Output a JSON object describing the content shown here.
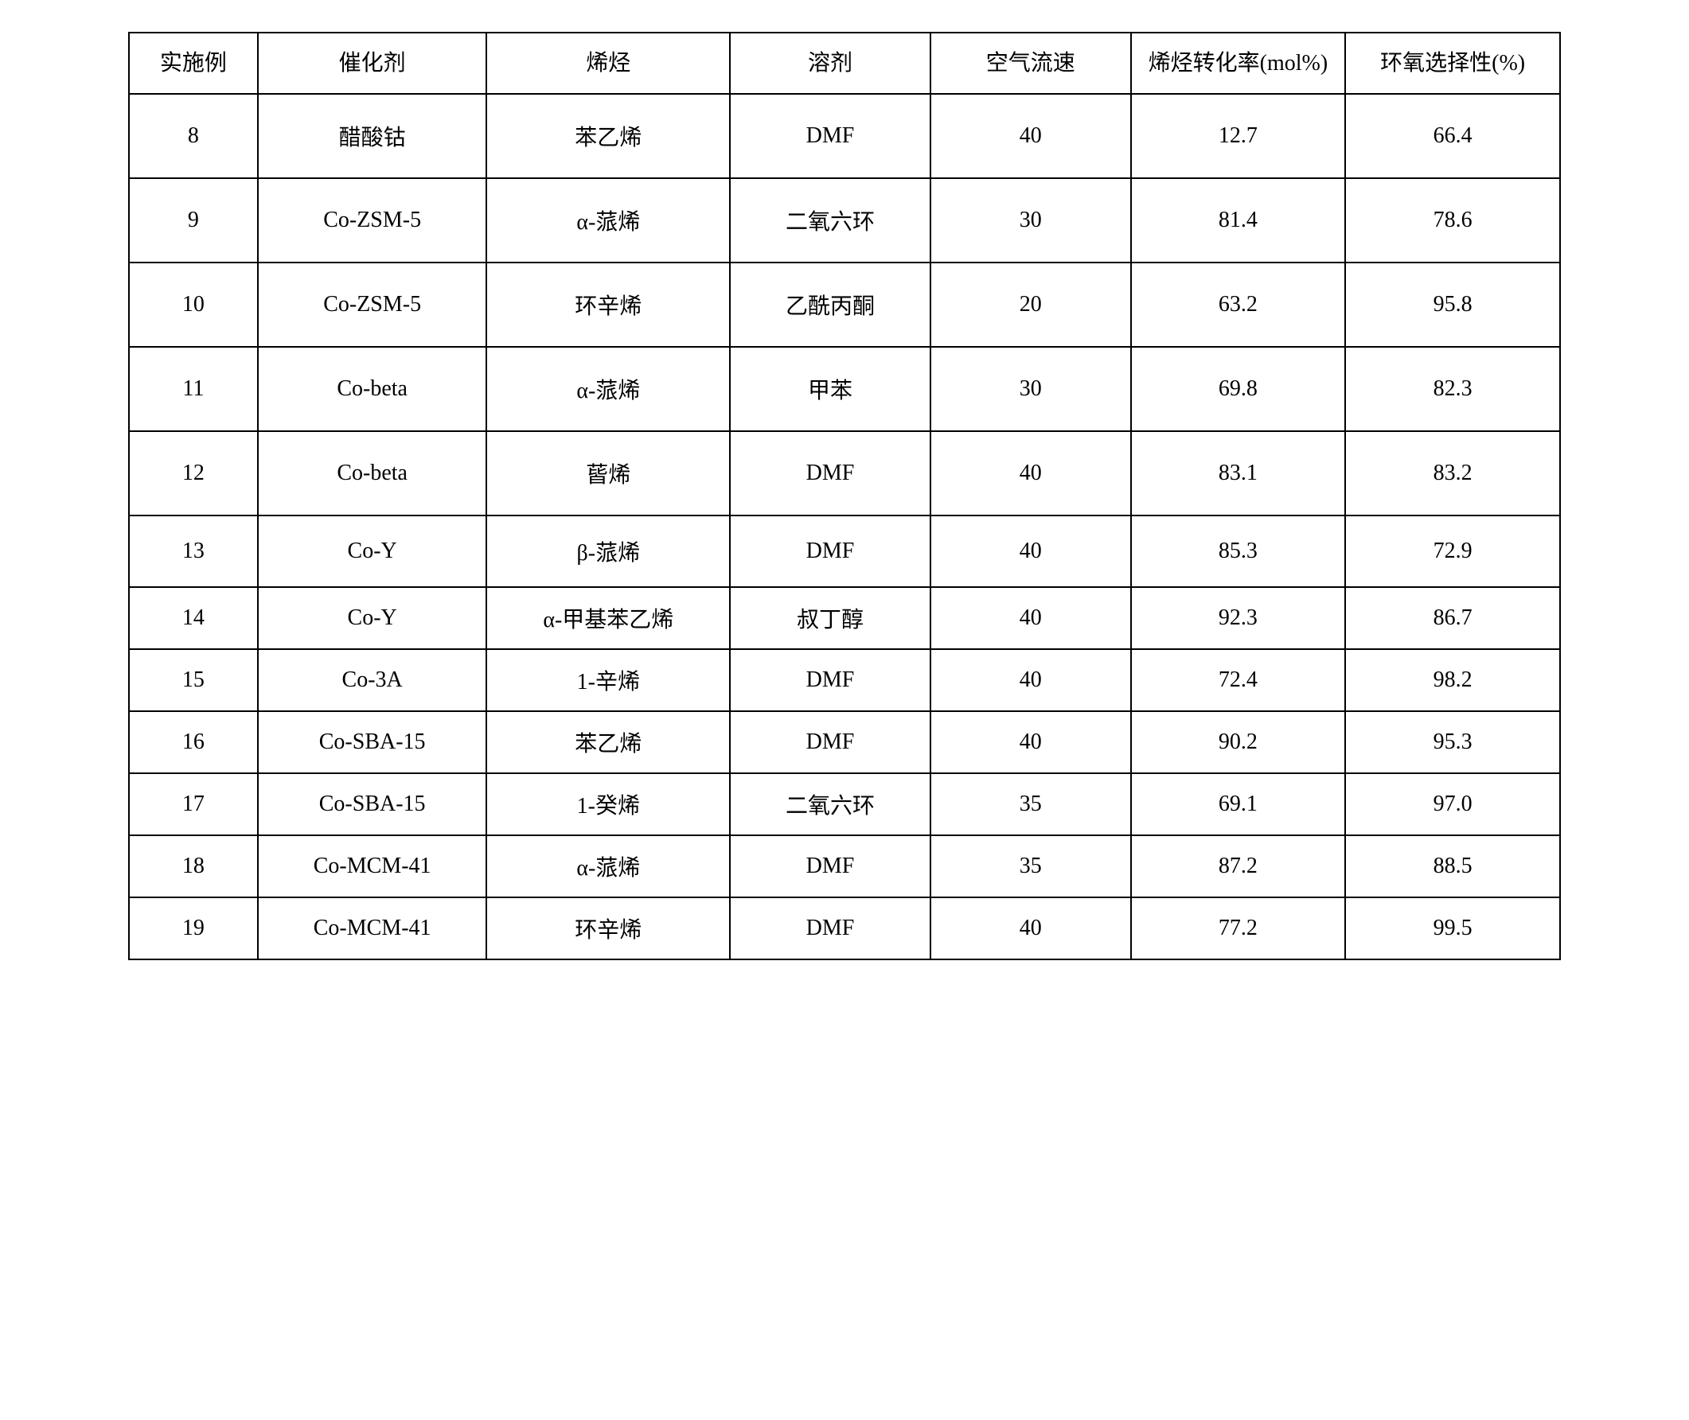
{
  "table": {
    "columns": [
      {
        "label": "实施例",
        "width": "9%"
      },
      {
        "label": "催化剂",
        "width": "16%"
      },
      {
        "label": "烯烃",
        "width": "17%"
      },
      {
        "label": "溶剂",
        "width": "14%"
      },
      {
        "label": "空气流速",
        "width": "14%"
      },
      {
        "label": "烯烃转化率(mol%)",
        "width": "15%"
      },
      {
        "label": "环氧选择性(%)",
        "width": "15%"
      }
    ],
    "rows": [
      {
        "height": "tall",
        "cells": [
          "8",
          "醋酸钴",
          "苯乙烯",
          "DMF",
          "40",
          "12.7",
          "66.4"
        ]
      },
      {
        "height": "tall",
        "cells": [
          "9",
          "Co-ZSM-5",
          "α-蒎烯",
          "二氧六环",
          "30",
          "81.4",
          "78.6"
        ]
      },
      {
        "height": "tall",
        "cells": [
          "10",
          "Co-ZSM-5",
          "环辛烯",
          "乙酰丙酮",
          "20",
          "63.2",
          "95.8"
        ]
      },
      {
        "height": "tall",
        "cells": [
          "11",
          "Co-beta",
          "α-蒎烯",
          "甲苯",
          "30",
          "69.8",
          "82.3"
        ]
      },
      {
        "height": "tall",
        "cells": [
          "12",
          "Co-beta",
          "蒈烯",
          "DMF",
          "40",
          "83.1",
          "83.2"
        ]
      },
      {
        "height": "medium",
        "cells": [
          "13",
          "Co-Y",
          "β-蒎烯",
          "DMF",
          "40",
          "85.3",
          "72.9"
        ]
      },
      {
        "height": "normal",
        "cells": [
          "14",
          "Co-Y",
          "α-甲基苯乙烯",
          "叔丁醇",
          "40",
          "92.3",
          "86.7"
        ]
      },
      {
        "height": "normal",
        "cells": [
          "15",
          "Co-3A",
          "1-辛烯",
          "DMF",
          "40",
          "72.4",
          "98.2"
        ]
      },
      {
        "height": "normal",
        "cells": [
          "16",
          "Co-SBA-15",
          "苯乙烯",
          "DMF",
          "40",
          "90.2",
          "95.3"
        ]
      },
      {
        "height": "normal",
        "cells": [
          "17",
          "Co-SBA-15",
          "1-癸烯",
          "二氧六环",
          "35",
          "69.1",
          "97.0"
        ]
      },
      {
        "height": "normal",
        "cells": [
          "18",
          "Co-MCM-41",
          "α-蒎烯",
          "DMF",
          "35",
          "87.2",
          "88.5"
        ]
      },
      {
        "height": "normal",
        "cells": [
          "19",
          "Co-MCM-41",
          "环辛烯",
          "DMF",
          "40",
          "77.2",
          "99.5"
        ]
      }
    ],
    "border_color": "#000000",
    "background_color": "#ffffff",
    "text_color": "#000000",
    "font_size": 28,
    "border_width": 2
  }
}
